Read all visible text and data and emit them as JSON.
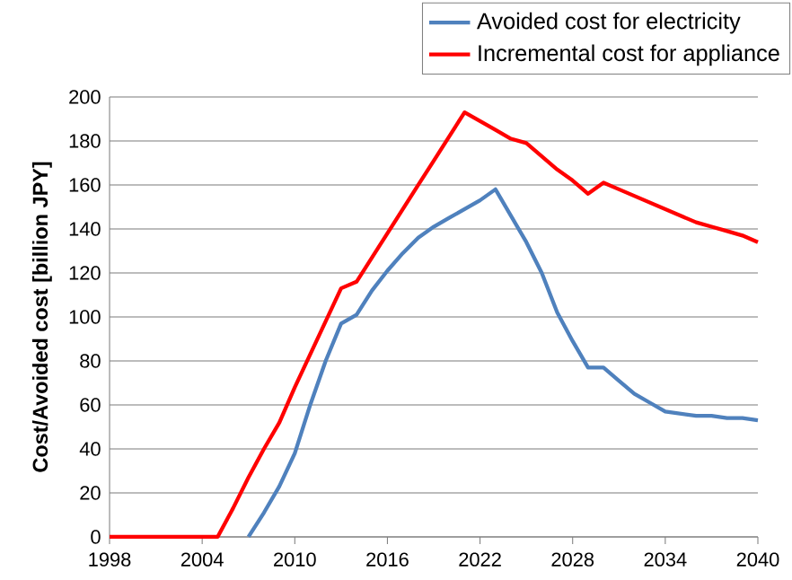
{
  "chart_data": {
    "type": "line",
    "ylabel": "Cost/Avoided cost [billion JPY]",
    "x": [
      1998,
      1999,
      2000,
      2001,
      2002,
      2003,
      2004,
      2005,
      2006,
      2007,
      2008,
      2009,
      2010,
      2011,
      2012,
      2013,
      2014,
      2015,
      2016,
      2017,
      2018,
      2019,
      2020,
      2021,
      2022,
      2023,
      2024,
      2025,
      2026,
      2027,
      2028,
      2029,
      2030,
      2031,
      2032,
      2033,
      2034,
      2035,
      2036,
      2037,
      2038,
      2039,
      2040
    ],
    "series": [
      {
        "name": "Avoided cost for electricity",
        "color": "#4f81bd",
        "values": [
          null,
          null,
          null,
          null,
          null,
          null,
          null,
          null,
          null,
          0,
          11,
          23,
          38,
          60,
          80,
          97,
          101,
          112,
          121,
          129,
          136,
          141,
          145,
          149,
          153,
          158,
          146,
          134,
          120,
          102,
          89,
          77,
          77,
          71,
          65,
          61,
          57,
          56,
          55,
          55,
          54,
          54,
          53
        ]
      },
      {
        "name": "Incremental cost for appliance",
        "color": "#ff0000",
        "values": [
          0,
          0,
          0,
          0,
          0,
          0,
          0,
          0,
          13,
          27,
          40,
          52,
          68,
          83,
          98,
          113,
          116,
          127,
          138,
          149,
          160,
          171,
          182,
          193,
          189,
          185,
          181,
          179,
          173,
          167,
          162,
          156,
          161,
          158,
          155,
          152,
          149,
          146,
          143,
          141,
          139,
          137,
          134
        ]
      }
    ],
    "xlim": [
      1998,
      2040
    ],
    "xticks": [
      1998,
      2004,
      2010,
      2016,
      2022,
      2028,
      2034,
      2040
    ],
    "ylim": [
      0,
      200
    ],
    "yticks": [
      0,
      20,
      40,
      60,
      80,
      100,
      120,
      140,
      160,
      180,
      200
    ],
    "grid": "y",
    "legend": "top right",
    "marker": "none",
    "line_style": "solid"
  }
}
